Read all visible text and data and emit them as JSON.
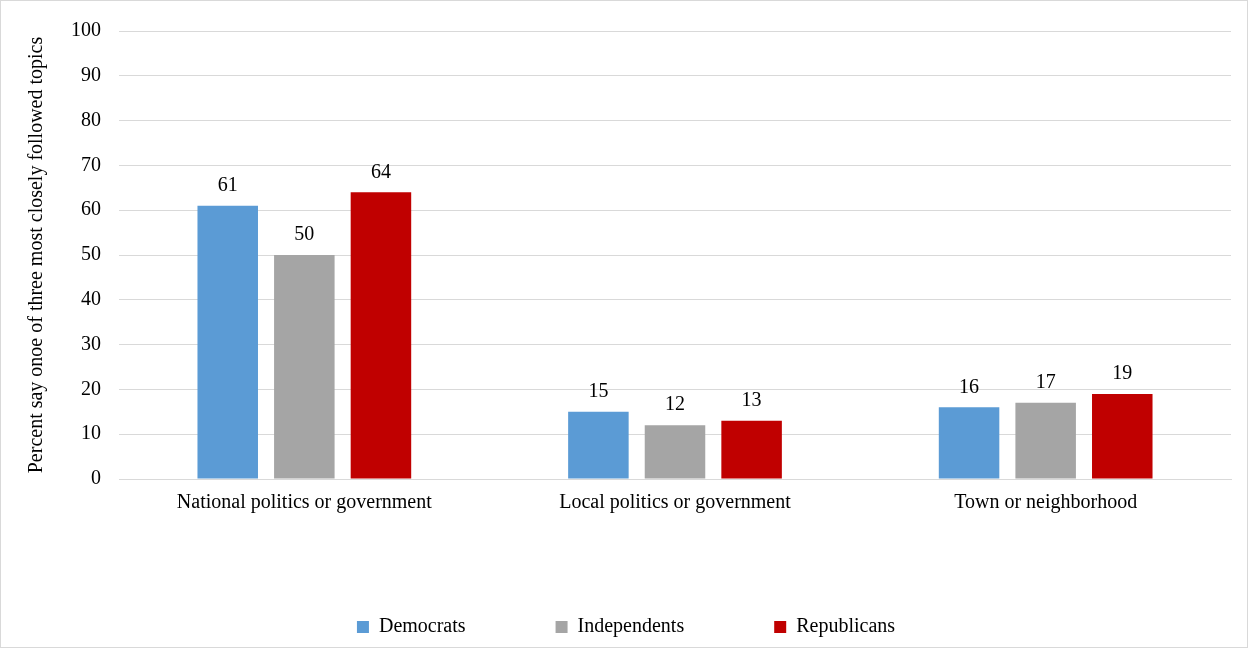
{
  "chart_data": {
    "type": "bar",
    "ylabel": "Percent say onoe of three most closely followed topics",
    "categories": [
      "National politics or government",
      "Local politics or government",
      "Town or neighborhood"
    ],
    "series": [
      {
        "name": "Democrats",
        "color": "#5b9bd5",
        "values": [
          61,
          15,
          16
        ]
      },
      {
        "name": "Independents",
        "color": "#a5a5a5",
        "values": [
          50,
          12,
          17
        ]
      },
      {
        "name": "Republicans",
        "color": "#c00000",
        "values": [
          64,
          13,
          19
        ]
      }
    ],
    "ylim": [
      0,
      100
    ],
    "yticks": [
      0,
      10,
      20,
      30,
      40,
      50,
      60,
      70,
      80,
      90,
      100
    ],
    "grid": "y",
    "legend": "bottom",
    "data_labels": true
  }
}
